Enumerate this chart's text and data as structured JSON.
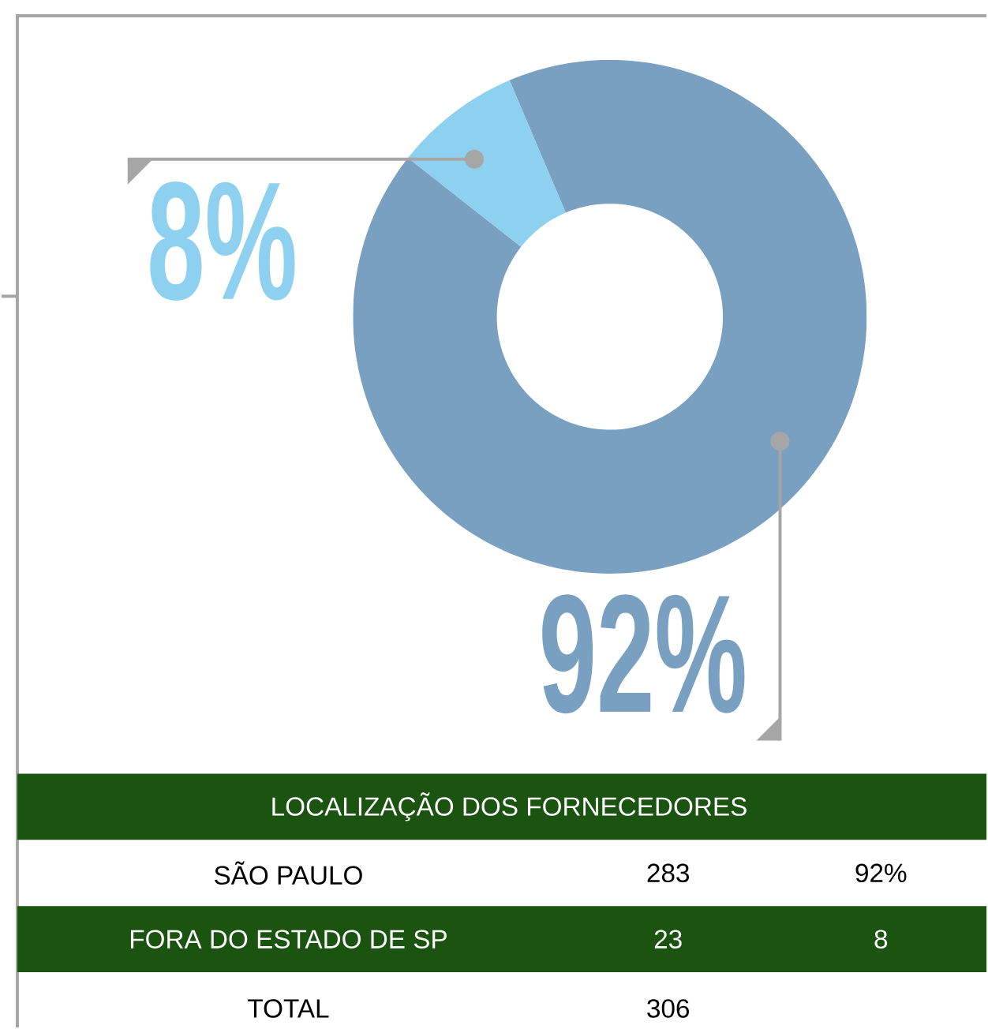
{
  "chart_data": {
    "type": "donut",
    "title": "LOCALIZAÇÃO DOS FORNECEDORES",
    "categories": [
      null,
      null
    ],
    "values": [
      92,
      8
    ],
    "colors": [
      "#7aa0c1",
      "#8ed0ef"
    ],
    "value_labels": [
      "92%",
      "8%"
    ],
    "annotations": [
      "SÃO PAULO",
      "283",
      "92%",
      "FORA DO ESTADO DE SP",
      "23",
      "8",
      "TOTAL",
      "306"
    ]
  }
}
